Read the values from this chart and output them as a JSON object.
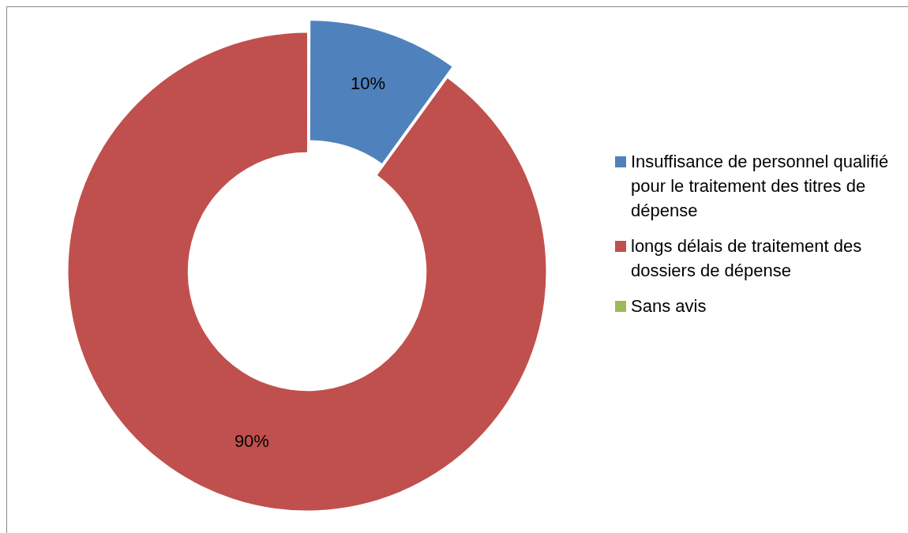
{
  "chart_data": {
    "type": "donut",
    "categories": [
      "Insuffisance de personnel qualifié pour le traitement des titres de dépense",
      "longs délais de traitement des dossiers de dépense",
      "Sans avis"
    ],
    "values": [
      10,
      90,
      0
    ],
    "colors": [
      "#4f81bd",
      "#c0504d",
      "#9bbb59"
    ],
    "value_labels": [
      "10%",
      "90%",
      null
    ],
    "legend": "right"
  }
}
